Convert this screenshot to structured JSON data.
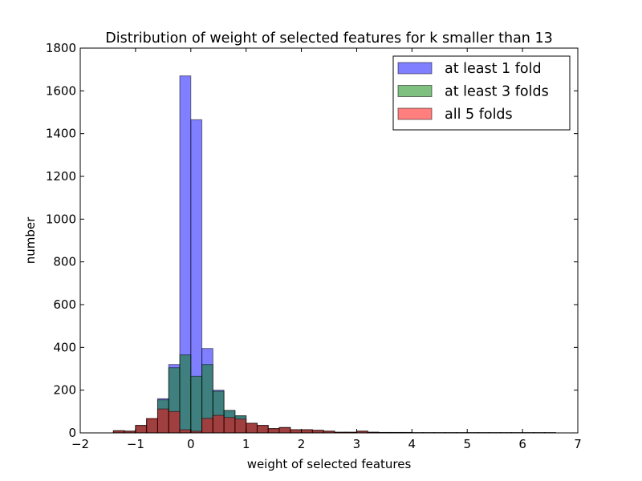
{
  "chart_data": {
    "type": "bar",
    "title": "Distribution of weight of selected features for k smaller than 13",
    "xlabel": "weight of selected features",
    "ylabel": "number",
    "xlim": [
      -2,
      7
    ],
    "ylim": [
      0,
      1800
    ],
    "x_ticks": [
      -2,
      -1,
      0,
      1,
      2,
      3,
      4,
      5,
      6,
      7
    ],
    "y_ticks": [
      0,
      200,
      400,
      600,
      800,
      1000,
      1200,
      1400,
      1600,
      1800
    ],
    "x_tick_labels": [
      "−2",
      "−1",
      "0",
      "1",
      "2",
      "3",
      "4",
      "5",
      "6",
      "7"
    ],
    "y_tick_labels": [
      "0",
      "200",
      "400",
      "600",
      "800",
      "1000",
      "1200",
      "1400",
      "1600",
      "1800"
    ],
    "grid": false,
    "legend_position": "top-right",
    "bin_edges": [
      -1.4,
      -1.2,
      -1.0,
      -0.8,
      -0.6,
      -0.4,
      -0.2,
      0.0,
      0.2,
      0.4,
      0.6,
      0.8,
      1.0,
      1.2,
      1.4,
      1.6,
      1.8,
      2.0,
      2.2,
      2.4,
      2.6,
      2.8,
      3.0,
      3.2,
      3.4,
      3.6,
      3.8,
      4.0,
      4.2,
      4.4,
      4.6,
      4.8,
      5.0,
      5.2,
      5.4,
      5.6,
      5.8,
      6.0,
      6.2,
      6.4,
      6.6
    ],
    "series": [
      {
        "name": "at least 1 fold",
        "color": "#0000ff",
        "values": [
          10,
          8,
          35,
          65,
          160,
          320,
          1670,
          1465,
          395,
          200,
          105,
          80,
          45,
          35,
          20,
          25,
          15,
          15,
          12,
          8,
          3,
          3,
          8,
          3,
          2,
          2,
          2,
          1,
          1,
          1,
          1,
          1,
          1,
          1,
          1,
          1,
          1,
          1,
          1,
          1
        ]
      },
      {
        "name": "at least 3 folds",
        "color": "#008000",
        "values": [
          10,
          8,
          35,
          65,
          155,
          305,
          365,
          265,
          320,
          195,
          105,
          80,
          45,
          35,
          20,
          25,
          15,
          15,
          12,
          8,
          3,
          3,
          8,
          3,
          2,
          2,
          2,
          1,
          1,
          1,
          1,
          1,
          1,
          1,
          1,
          1,
          1,
          1,
          1,
          1
        ]
      },
      {
        "name": "all 5 folds",
        "color": "#ff0000",
        "values": [
          10,
          8,
          35,
          68,
          112,
          100,
          15,
          8,
          68,
          82,
          72,
          65,
          45,
          35,
          20,
          25,
          15,
          15,
          12,
          8,
          3,
          3,
          8,
          3,
          2,
          2,
          2,
          1,
          1,
          1,
          1,
          1,
          1,
          1,
          1,
          1,
          1,
          1,
          1,
          1
        ]
      }
    ]
  }
}
